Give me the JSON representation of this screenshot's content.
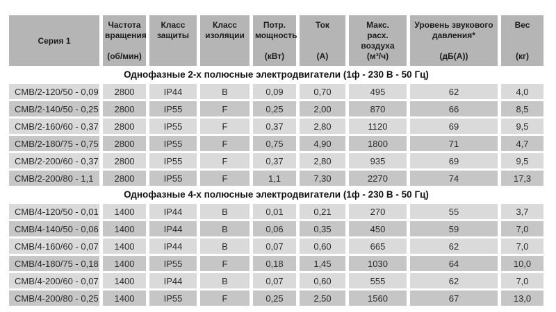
{
  "colors": {
    "header_bg": "#b5b5b5",
    "row_light_bg": "#dadada",
    "row_dark_bg": "#c6c6c6",
    "text": "#2b2b2b",
    "page_bg": "#ffffff"
  },
  "table": {
    "columns": [
      {
        "key": "series",
        "label": "Серия 1",
        "unit": ""
      },
      {
        "key": "speed",
        "label": "Частота вращения",
        "unit": "(об/мин)"
      },
      {
        "key": "protection",
        "label": "Класс защиты",
        "unit": ""
      },
      {
        "key": "insulation",
        "label": "Класс изоляции",
        "unit": ""
      },
      {
        "key": "power",
        "label": "Потр. мощность",
        "unit": "(кВт)"
      },
      {
        "key": "current",
        "label": "Ток",
        "unit": "(А)"
      },
      {
        "key": "airflow",
        "label": "Макс. расх. воздуха",
        "unit": "(м³/ч)"
      },
      {
        "key": "noise",
        "label": "Уровень звукового давления*",
        "unit": "(дБ(А))"
      },
      {
        "key": "weight",
        "label": "Вес",
        "unit": "(кг)"
      }
    ],
    "sections": [
      {
        "title": "Однофазные 2-х полюсные электродвигатели (1ф - 230 В - 50 Гц)",
        "rows": [
          [
            "CMB/2-120/50 - 0,09",
            "2800",
            "IP44",
            "B",
            "0,09",
            "0,70",
            "495",
            "62",
            "4,0"
          ],
          [
            "CMB/2-140/50 - 0,25",
            "2800",
            "IP55",
            "F",
            "0,25",
            "2,00",
            "870",
            "66",
            "8,5"
          ],
          [
            "CMB/2-160/60 - 0,37",
            "2800",
            "IP55",
            "F",
            "0,37",
            "2,80",
            "1120",
            "69",
            "9,5"
          ],
          [
            "CMB/2-180/75 - 0,75",
            "2800",
            "IP55",
            "F",
            "0,75",
            "4,90",
            "1800",
            "71",
            "4,7"
          ],
          [
            "CMB/2-200/60 - 0,37",
            "2800",
            "IP55",
            "F",
            "0,37",
            "2,80",
            "935",
            "69",
            "9,5"
          ],
          [
            "CMB/2-200/80 - 1,1",
            "2800",
            "IP55",
            "F",
            "1,1",
            "7,30",
            "2270",
            "74",
            "17,3"
          ]
        ]
      },
      {
        "title": "Однофазные 4-х полюсные электродвигатели (1ф - 230 В - 50 Гц)",
        "rows": [
          [
            "CMB/4-120/50 - 0,01",
            "1400",
            "IP44",
            "B",
            "0,01",
            "0,21",
            "270",
            "55",
            "3,7"
          ],
          [
            "CMB/4-140/50 - 0,06",
            "1400",
            "IP44",
            "B",
            "0,06",
            "0,35",
            "450",
            "59",
            "7,0"
          ],
          [
            "CMB/4-160/60 - 0,07",
            "1400",
            "IP44",
            "B",
            "0,07",
            "0,60",
            "665",
            "62",
            "7,0"
          ],
          [
            "CMB/4-180/75 - 0,18",
            "1400",
            "IP55",
            "F",
            "0,18",
            "1,45",
            "1030",
            "64",
            "10,0"
          ],
          [
            "CMB/4-200/60 - 0,07",
            "1400",
            "IP44",
            "B",
            "0,07",
            "0,60",
            "555",
            "62",
            "7,0"
          ],
          [
            "CMB/4-200/80 - 0,25",
            "1400",
            "IP55",
            "F",
            "0,25",
            "2,50",
            "1560",
            "67",
            "13,0"
          ]
        ]
      }
    ]
  }
}
